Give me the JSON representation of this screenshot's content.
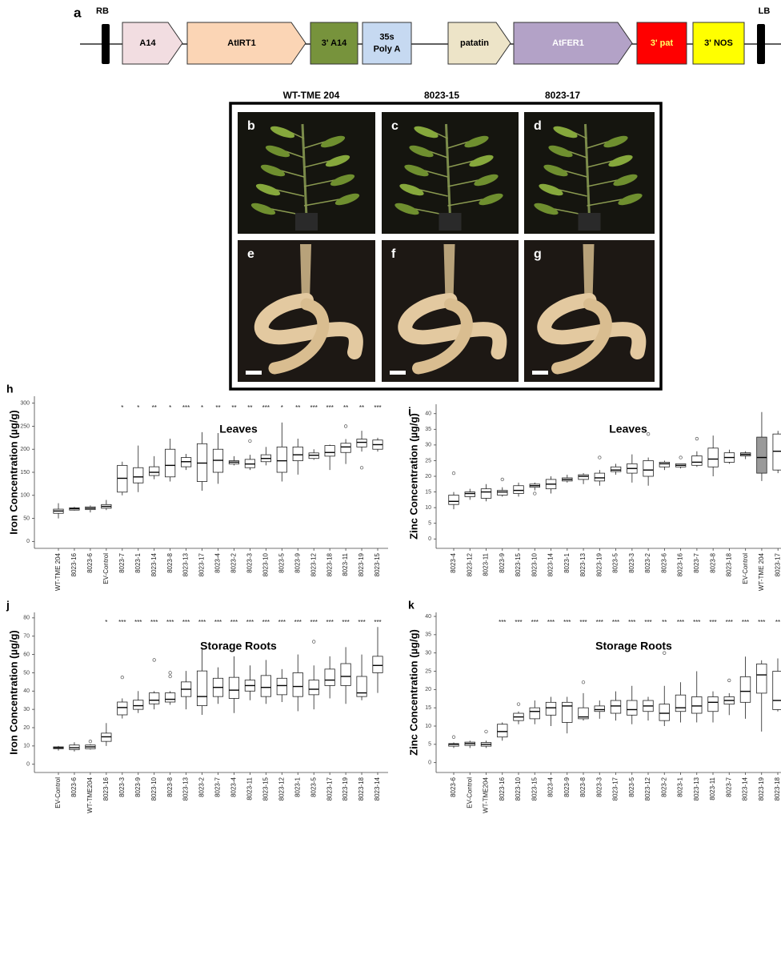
{
  "construct": {
    "panel": "a",
    "rb": "RB",
    "lb": "LB",
    "elements": [
      {
        "lines": [
          "A14"
        ],
        "color": "#f2dde1"
      },
      {
        "lines": [
          "AtIRT1"
        ],
        "color": "#fbd5b5"
      },
      {
        "lines": [
          "3' A14"
        ],
        "color": "#77933c"
      },
      {
        "lines": [
          "35s",
          "Poly A"
        ],
        "color": "#c6d9f1"
      },
      {
        "lines": [
          "patatin"
        ],
        "color": "#ede4c8"
      },
      {
        "lines": [
          "AtFER1"
        ],
        "color": "#b3a2c7"
      },
      {
        "lines": [
          "3' pat"
        ],
        "color": "#ff0000"
      },
      {
        "lines": [
          "3' NOS"
        ],
        "color": "#ffff00"
      }
    ]
  },
  "photos": {
    "titles": [
      "WT-TME 204",
      "8023-15",
      "8023-17"
    ],
    "panels": [
      "b",
      "c",
      "d",
      "e",
      "f",
      "g"
    ]
  },
  "chart_data": [
    {
      "type": "box",
      "panel": "h",
      "title": "Leaves",
      "ylabel": "Iron Concentration (µg/g)",
      "color": "#ffffff",
      "ylim": [
        -15,
        315
      ],
      "yticks": [
        0,
        50,
        100,
        150,
        200,
        250,
        300
      ],
      "categories": [
        "WT-TME 204",
        "8023-16",
        "8023-6",
        "EV-Control",
        "8023-7",
        "8023-1",
        "8023-14",
        "8023-8",
        "8023-13",
        "8023-17",
        "8023-4",
        "8023-2",
        "8023-3",
        "8023-10",
        "8023-5",
        "8023-9",
        "8023-12",
        "8023-18",
        "8023-11",
        "8023-19",
        "8023-15"
      ],
      "median": [
        66,
        71,
        72,
        76,
        137,
        140,
        150,
        165,
        173,
        170,
        176,
        172,
        168,
        180,
        175,
        188,
        187,
        193,
        205,
        215,
        210
      ],
      "q1": [
        61,
        68,
        69,
        72,
        107,
        127,
        143,
        140,
        162,
        130,
        150,
        168,
        160,
        173,
        150,
        175,
        180,
        185,
        193,
        205,
        200
      ],
      "q3": [
        70,
        73,
        75,
        80,
        165,
        160,
        162,
        200,
        182,
        212,
        200,
        175,
        178,
        188,
        205,
        205,
        192,
        208,
        213,
        222,
        220
      ],
      "whislo": [
        50,
        67,
        63,
        68,
        100,
        107,
        135,
        130,
        155,
        110,
        125,
        165,
        155,
        165,
        130,
        145,
        177,
        155,
        168,
        195,
        195
      ],
      "whishi": [
        83,
        75,
        78,
        90,
        173,
        208,
        185,
        223,
        190,
        237,
        235,
        185,
        188,
        205,
        258,
        223,
        200,
        210,
        222,
        240,
        225
      ],
      "outliers": [
        [],
        [],
        [],
        [],
        [],
        [],
        [],
        [],
        [],
        [],
        [],
        [],
        [
          218
        ],
        [],
        [],
        [],
        [],
        [],
        [
          250
        ],
        [
          160
        ],
        []
      ],
      "stars": [
        null,
        null,
        null,
        null,
        "*",
        "*",
        "**",
        "*",
        "***",
        "*",
        "**",
        "**",
        "**",
        "***",
        "*",
        "**",
        "***",
        "***",
        "**",
        "**",
        "***"
      ]
    },
    {
      "type": "box",
      "panel": "i",
      "title": "Leaves",
      "ylabel": "Zinc Concentration (µg/g)",
      "color": "#ffffff",
      "ylim": [
        -3,
        43
      ],
      "yticks": [
        0,
        5,
        10,
        15,
        20,
        25,
        30,
        35,
        40
      ],
      "categories": [
        "8023-4",
        "8023-12",
        "8023-11",
        "8023-9",
        "8023-15",
        "8023-10",
        "8023-14",
        "8023-1",
        "8023-13",
        "8023-19",
        "8023-5",
        "8023-3",
        "8023-2",
        "8023-6",
        "8023-16",
        "8023-7",
        "8023-8",
        "8023-18",
        "EV-Control",
        "WT-TME 204",
        "8023-17"
      ],
      "box_colors": [
        "#ffffff",
        "#ffffff",
        "#ffffff",
        "#ffffff",
        "#ffffff",
        "#ffffff",
        "#ffffff",
        "#ffffff",
        "#ffffff",
        "#ffffff",
        "#ffffff",
        "#ffffff",
        "#ffffff",
        "#ffffff",
        "#ffffff",
        "#ffffff",
        "#ffffff",
        "#ffffff",
        "#cfcfcf",
        "#9a9a9a",
        "#ffffff"
      ],
      "median": [
        12,
        14.5,
        15,
        15,
        15.5,
        17,
        17.5,
        19,
        20,
        19.5,
        22,
        22.5,
        22,
        24,
        23.5,
        24.5,
        25.5,
        26,
        27,
        26,
        28
      ],
      "q1": [
        11,
        13.5,
        13,
        14,
        14.5,
        16.5,
        16,
        18.5,
        19,
        18.5,
        21.5,
        21,
        20,
        23,
        23,
        23.5,
        23,
        24.5,
        26.5,
        21,
        22
      ],
      "q3": [
        14,
        15,
        16,
        15.5,
        17,
        17.5,
        19,
        19.5,
        20.5,
        21,
        23,
        24,
        25,
        24.5,
        24,
        26.5,
        29,
        27.5,
        27.5,
        32.5,
        33.5
      ],
      "whislo": [
        9.5,
        12.5,
        12,
        13.5,
        13.5,
        15.5,
        14.5,
        18,
        17.5,
        17,
        20.5,
        18,
        17,
        22,
        22.5,
        23,
        20,
        24,
        25.5,
        18.5,
        21
      ],
      "whishi": [
        15,
        16,
        17.5,
        16.5,
        18,
        18,
        20,
        20.5,
        21,
        22,
        24,
        27,
        26,
        25,
        24,
        28,
        33,
        28.5,
        28,
        40.5,
        34.5
      ],
      "outliers": [
        [
          21
        ],
        [],
        [],
        [
          19
        ],
        [],
        [
          14.5
        ],
        [],
        [],
        [],
        [
          26
        ],
        [],
        [],
        [
          33.5
        ],
        [],
        [
          26
        ],
        [
          32
        ],
        [],
        [],
        [],
        [],
        []
      ],
      "stars": [
        null,
        null,
        null,
        null,
        null,
        null,
        null,
        null,
        null,
        null,
        null,
        null,
        null,
        null,
        null,
        null,
        null,
        null,
        null,
        null,
        null
      ]
    },
    {
      "type": "box",
      "panel": "j",
      "title": "Storage Roots",
      "ylabel": "Iron Concentration (µg/g)",
      "color": "#ffffff",
      "ylim": [
        -4.5,
        83
      ],
      "yticks": [
        0,
        10,
        20,
        30,
        40,
        50,
        60,
        70,
        80
      ],
      "categories": [
        "EV-Control",
        "8023-6",
        "WT-TME204",
        "8023-16",
        "8023-3",
        "8023-9",
        "8023-10",
        "8023-8",
        "8023-13",
        "8023-2",
        "8023-7",
        "8023-4",
        "8023-11",
        "8023-15",
        "8023-12",
        "8023-1",
        "8023-5",
        "8023-17",
        "8023-19",
        "8023-18",
        "8023-14"
      ],
      "median": [
        9,
        9,
        9.5,
        15,
        31,
        32,
        35,
        35.5,
        41,
        37,
        42,
        40.5,
        43,
        42,
        43,
        42.5,
        41,
        46,
        48,
        39,
        54
      ],
      "q1": [
        8.5,
        8,
        8.5,
        12.5,
        27,
        30,
        33,
        34,
        37,
        32,
        37,
        36,
        40,
        37,
        38,
        37,
        38,
        43,
        43,
        37,
        50
      ],
      "q3": [
        9.5,
        10.5,
        10.5,
        17,
        34,
        35,
        39,
        39,
        45,
        51,
        47,
        47.5,
        46,
        48.5,
        47,
        50,
        46,
        52,
        55,
        48,
        59
      ],
      "whislo": [
        7.5,
        7,
        8,
        10,
        25,
        28,
        30,
        32.5,
        30,
        27,
        33,
        28,
        35,
        33,
        34,
        29,
        30,
        36,
        33,
        35,
        39
      ],
      "whishi": [
        10,
        12,
        11,
        22.5,
        36,
        40,
        40,
        40,
        51,
        63,
        53,
        59,
        54,
        57,
        52,
        60,
        54,
        59,
        64,
        60,
        75
      ],
      "outliers": [
        [],
        [],
        [
          12.5
        ],
        [],
        [
          47.5
        ],
        [],
        [
          57
        ],
        [
          50,
          48
        ],
        [],
        [],
        [],
        [],
        [],
        [],
        [],
        [],
        [
          67
        ],
        [],
        [],
        [],
        []
      ],
      "stars": [
        null,
        null,
        null,
        "*",
        "***",
        "***",
        "***",
        "***",
        "***",
        "***",
        "***",
        "***",
        "***",
        "***",
        "***",
        "***",
        "***",
        "***",
        "***",
        "***",
        "***"
      ]
    },
    {
      "type": "box",
      "panel": "k",
      "title": "Storage Roots",
      "ylabel": "Zinc Concentration (µg/g)",
      "color": "#ffffff",
      "ylim": [
        -2.7,
        41.1
      ],
      "yticks": [
        0,
        5,
        10,
        15,
        20,
        25,
        30,
        35,
        40
      ],
      "categories": [
        "8023-6",
        "EV-Control",
        "WT-TME204",
        "8023-16",
        "8023-10",
        "8023-15",
        "8023-4",
        "8023-9",
        "8023-8",
        "8023-3",
        "8023-17",
        "8023-5",
        "8023-12",
        "8023-2",
        "8023-1",
        "8023-13",
        "8023-11",
        "8023-7",
        "8023-14",
        "8023-19",
        "8023-18"
      ],
      "median": [
        5,
        5.2,
        5,
        8.5,
        12.5,
        14,
        15,
        15.5,
        12.5,
        14.5,
        15.5,
        14.5,
        15.5,
        13.5,
        15,
        15.5,
        16.5,
        17,
        19.5,
        24,
        17
      ],
      "q1": [
        4.5,
        4.7,
        4.5,
        7,
        11.5,
        12,
        13,
        11,
        12,
        14,
        13.5,
        13,
        14,
        11.5,
        14,
        13.5,
        14,
        16,
        16.5,
        19,
        14.5
      ],
      "q3": [
        5.2,
        5.6,
        5.5,
        10.5,
        13.5,
        15,
        16.5,
        16.5,
        15,
        15.5,
        17,
        17,
        17,
        16,
        18.5,
        18,
        18,
        18,
        23.5,
        27,
        25
      ],
      "whislo": [
        4,
        4,
        4,
        6,
        10.5,
        10.5,
        10,
        8,
        11.5,
        12,
        11.5,
        10.5,
        11.5,
        10,
        11,
        11,
        11,
        13,
        12,
        8.5,
        14
      ],
      "whishi": [
        5.5,
        6,
        6,
        11,
        14,
        17,
        18,
        18,
        19,
        17,
        19.5,
        21,
        18,
        21,
        22,
        25,
        19.5,
        19,
        29,
        28,
        28.5
      ],
      "outliers": [
        [
          7
        ],
        [],
        [
          8.5
        ],
        [],
        [
          16
        ],
        [],
        [],
        [],
        [
          22
        ],
        [],
        [],
        [],
        [],
        [
          30
        ],
        [],
        [],
        [],
        [
          22.5
        ],
        [],
        [],
        []
      ],
      "stars": [
        null,
        null,
        null,
        "***",
        "***",
        "***",
        "***",
        "***",
        "***",
        "***",
        "***",
        "***",
        "***",
        "**",
        "***",
        "***",
        "***",
        "***",
        "***",
        "***",
        "**"
      ]
    }
  ]
}
